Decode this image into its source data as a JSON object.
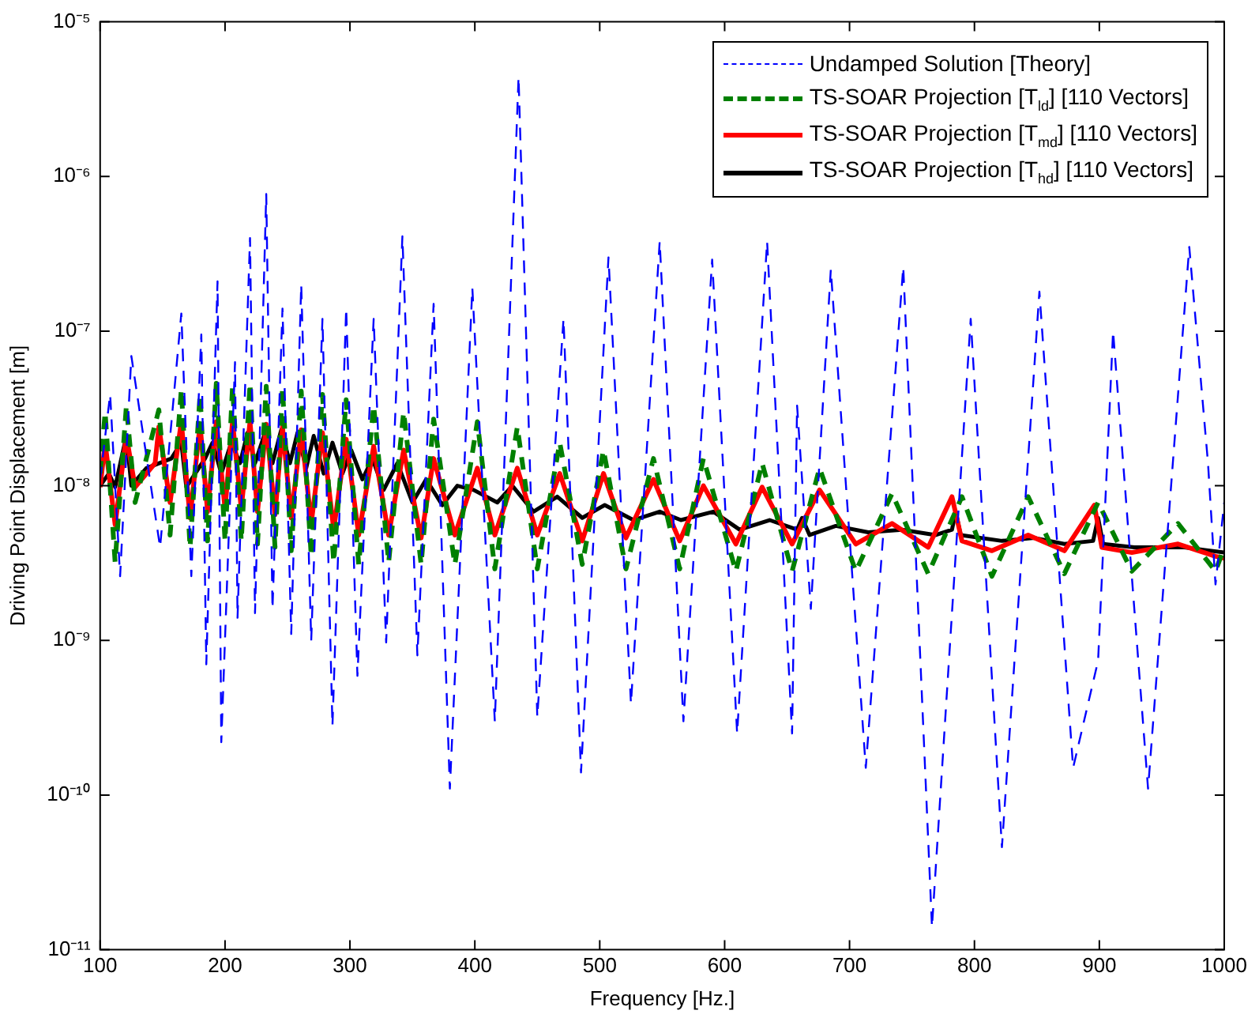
{
  "chart_data": {
    "type": "line",
    "xlabel": "Frequency [Hz.]",
    "ylabel": "Driving Point Displacement [m]",
    "log": "y",
    "grid": false,
    "legend": "top right",
    "marker": "none",
    "xlim": [
      100,
      1000
    ],
    "xticks": [
      100,
      200,
      300,
      400,
      500,
      600,
      700,
      800,
      900,
      1000
    ],
    "ylim": [
      1e-11,
      1e-05
    ],
    "yticks": [
      {
        "value": 1e-11,
        "label": "10⁻¹¹"
      },
      {
        "value": 1e-10,
        "label": "10⁻¹⁰"
      },
      {
        "value": 1e-09,
        "label": "10⁻⁹"
      },
      {
        "value": 1e-08,
        "label": "10⁻⁸"
      },
      {
        "value": 1e-07,
        "label": "10⁻⁷"
      },
      {
        "value": 1e-06,
        "label": "10⁻⁶"
      },
      {
        "value": 1e-05,
        "label": "10⁻⁵"
      }
    ],
    "series": [
      {
        "name": "Undamped Solution [Theory]",
        "color": "#0000ff",
        "line_style": "dashed",
        "x": [
          100,
          108,
          116,
          125,
          148,
          165,
          173,
          181,
          185,
          194,
          197,
          208,
          210,
          220,
          224,
          233,
          238,
          246,
          253,
          261,
          269,
          278,
          286,
          297,
          306,
          319,
          329,
          342,
          354,
          367,
          380,
          398,
          416,
          435,
          450,
          471,
          485,
          507,
          525,
          548,
          567,
          590,
          610,
          634,
          654,
          658,
          669,
          685,
          713,
          743,
          766,
          797,
          822,
          852,
          879,
          899,
          911,
          939,
          972,
          987,
          993,
          1000
        ],
        "values": [
          1.1e-08,
          3.9e-08,
          2.6e-09,
          6.9e-08,
          4e-09,
          1.3e-07,
          2.6e-09,
          9.5e-08,
          7e-10,
          2.1e-07,
          2.2e-10,
          6.3e-08,
          1.4e-09,
          4e-07,
          1.5e-09,
          7.7e-07,
          1.6e-09,
          1.4e-07,
          1.1e-09,
          2e-07,
          1e-09,
          1.2e-07,
          2.8e-10,
          1.4e-07,
          5.9e-10,
          1.2e-07,
          9.7e-10,
          4.1e-07,
          8e-10,
          1.5e-07,
          1.1e-10,
          1.9e-07,
          3e-10,
          4.4e-06,
          3.2e-10,
          1.2e-07,
          1.4e-10,
          3e-07,
          3.9e-10,
          3.8e-07,
          3e-10,
          2.9e-07,
          2.5e-10,
          3.8e-07,
          2.5e-10,
          3.3e-08,
          1.6e-09,
          2.5e-07,
          1.5e-10,
          2.6e-07,
          1.4e-11,
          1.2e-07,
          4.6e-11,
          1.8e-07,
          1.5e-10,
          7.4e-10,
          1e-07,
          1.1e-10,
          3.5e-07,
          1.4e-08,
          2.3e-09,
          7.8e-09
        ]
      },
      {
        "name": "TS-SOAR Projection [T$_{ld}$] [110 Vectors]",
        "color": "#008000",
        "line_style": "dashed",
        "x": [
          100,
          104,
          112,
          121,
          128,
          147,
          156,
          165,
          172,
          180,
          186,
          193,
          200,
          206,
          213,
          220,
          226,
          233,
          240,
          246,
          253,
          261,
          269,
          278,
          287,
          297,
          307,
          319,
          331,
          343,
          357,
          367,
          384,
          402,
          416,
          434,
          450,
          468,
          486,
          503,
          521,
          543,
          564,
          583,
          609,
          630,
          654,
          676,
          705,
          734,
          763,
          790,
          814,
          843,
          872,
          899,
          926,
          963,
          993,
          1000
        ],
        "values": [
          1.2e-08,
          3e-08,
          3.2e-09,
          3.3e-08,
          7.8e-09,
          3.1e-08,
          4.8e-09,
          4.2e-08,
          4e-09,
          3.9e-08,
          4.4e-09,
          4.6e-08,
          4.4e-09,
          4.4e-08,
          4.4e-09,
          4.6e-08,
          4.2e-09,
          4.4e-08,
          4e-09,
          4.3e-08,
          3.8e-09,
          4.1e-08,
          3.5e-09,
          3.9e-08,
          3.2e-09,
          3.6e-08,
          3.1e-09,
          3.3e-08,
          3.2e-09,
          3e-08,
          3.1e-09,
          2.7e-08,
          3.1e-09,
          2.6e-08,
          2.9e-09,
          2.4e-08,
          2.9e-09,
          1.9e-08,
          3.1e-09,
          1.7e-08,
          2.9e-09,
          1.5e-08,
          2.9e-09,
          1.5e-08,
          2.8e-09,
          1.4e-08,
          2.8e-09,
          1.3e-08,
          2.8e-09,
          8.9e-09,
          2.7e-09,
          8.5e-09,
          2.6e-09,
          8.5e-09,
          2.7e-09,
          7.8e-09,
          2.8e-09,
          5.7e-09,
          2.8e-09,
          4e-09
        ]
      },
      {
        "name": "TS-SOAR Projection [T$_{md}$] [110 Vectors]",
        "color": "#ff0000",
        "line_style": "solid",
        "x": [
          100,
          104,
          112,
          121,
          128,
          144,
          147,
          156,
          165,
          172,
          180,
          186,
          193,
          200,
          206,
          213,
          220,
          226,
          233,
          240,
          246,
          253,
          261,
          269,
          278,
          287,
          297,
          307,
          319,
          331,
          343,
          357,
          367,
          384,
          402,
          416,
          434,
          450,
          468,
          486,
          503,
          521,
          543,
          564,
          583,
          609,
          630,
          654,
          676,
          705,
          734,
          763,
          782,
          790,
          814,
          843,
          872,
          896,
          902,
          926,
          963,
          993,
          1000
        ],
        "values": [
          9.8e-09,
          1.9e-08,
          5.6e-09,
          2.1e-08,
          9.8e-09,
          1.4e-08,
          2.4e-08,
          7.8e-09,
          2.6e-08,
          6.2e-09,
          2.5e-08,
          6.8e-09,
          2.6e-08,
          7.1e-09,
          2.6e-08,
          7.1e-09,
          2.6e-08,
          6.8e-09,
          2.5e-08,
          6.5e-09,
          2.4e-08,
          6.2e-09,
          2.3e-08,
          5.7e-09,
          2.2e-08,
          5.2e-09,
          2e-08,
          4.8e-09,
          1.8e-08,
          4.8e-09,
          1.7e-08,
          4.6e-09,
          1.5e-08,
          4.8e-09,
          1.3e-08,
          4.8e-09,
          1.3e-08,
          4.8e-09,
          1.2e-08,
          4.4e-09,
          1.2e-08,
          4.6e-09,
          1.1e-08,
          4.4e-09,
          1e-08,
          4.2e-09,
          9.8e-09,
          4.2e-09,
          9.4e-09,
          4.2e-09,
          5.7e-09,
          4e-09,
          8.5e-09,
          4.4e-09,
          3.8e-09,
          4.8e-09,
          3.8e-09,
          7.5e-09,
          4e-09,
          3.7e-09,
          4.2e-09,
          3.5e-09,
          3.4e-09
        ]
      },
      {
        "name": "TS-SOAR Projection [T$_{hd}$] [110 Vectors]",
        "color": "#000000",
        "line_style": "solid",
        "x": [
          100,
          107,
          112,
          117,
          121,
          125,
          137,
          157,
          165,
          169,
          184,
          190,
          197,
          205,
          212,
          218,
          224,
          232,
          238,
          245,
          252,
          258,
          265,
          271,
          279,
          286,
          294,
          301,
          310,
          318,
          327,
          338,
          350,
          361,
          374,
          386,
          399,
          418,
          430,
          447,
          466,
          486,
          504,
          527,
          548,
          565,
          591,
          612,
          636,
          658,
          662,
          668,
          689,
          715,
          742,
          769,
          782,
          785,
          789,
          822,
          848,
          872,
          895,
          899,
          903,
          928,
          968,
          1000
        ],
        "values": [
          1e-08,
          1.2e-08,
          9.8e-09,
          1.5e-08,
          2.1e-08,
          1e-08,
          1.3e-08,
          1.5e-08,
          1.9e-08,
          9.8e-09,
          1.5e-08,
          1.9e-08,
          1.2e-08,
          1.9e-08,
          1.4e-08,
          2.2e-08,
          1.4e-08,
          2.2e-08,
          1.4e-08,
          2.3e-08,
          1.4e-08,
          2.2e-08,
          1.3e-08,
          2.1e-08,
          1.2e-08,
          1.9e-08,
          1.2e-08,
          1.7e-08,
          1.1e-08,
          1.5e-08,
          9.4e-09,
          1.4e-08,
          7.8e-09,
          1.1e-08,
          7.5e-09,
          1e-08,
          9.4e-09,
          7.8e-09,
          1e-08,
          6.8e-09,
          8.5e-09,
          6.2e-09,
          7.5e-09,
          6e-09,
          6.8e-09,
          6e-09,
          6.8e-09,
          5.2e-09,
          6e-09,
          5.2e-09,
          6.2e-09,
          4.8e-09,
          5.5e-09,
          5e-09,
          5.2e-09,
          4.8e-09,
          5.2e-09,
          6.8e-09,
          4.8e-09,
          4.4e-09,
          4.6e-09,
          4.2e-09,
          4.4e-09,
          6.2e-09,
          4.2e-09,
          4e-09,
          4e-09,
          3.7e-09
        ]
      }
    ]
  }
}
